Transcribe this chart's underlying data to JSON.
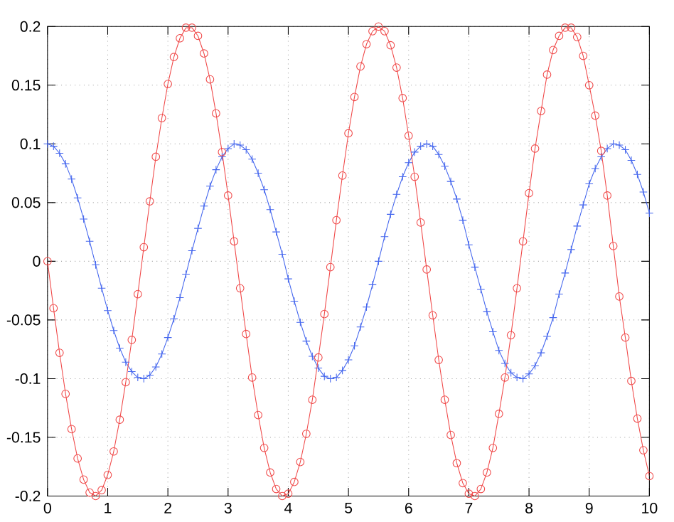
{
  "chart_data": {
    "type": "line",
    "x": [
      0,
      0.1,
      0.2,
      0.3,
      0.4,
      0.5,
      0.6,
      0.7,
      0.8,
      0.9,
      1,
      1.1,
      1.2,
      1.3,
      1.4,
      1.5,
      1.6,
      1.7,
      1.8,
      1.9,
      2,
      2.1,
      2.2,
      2.3,
      2.4,
      2.5,
      2.6,
      2.7,
      2.8,
      2.9,
      3,
      3.1,
      3.2,
      3.3,
      3.4,
      3.5,
      3.6,
      3.7,
      3.8,
      3.9,
      4,
      4.1,
      4.2,
      4.3,
      4.4,
      4.5,
      4.6,
      4.7,
      4.8,
      4.9,
      5,
      5.1,
      5.2,
      5.3,
      5.4,
      5.5,
      5.6,
      5.7,
      5.8,
      5.9,
      6,
      6.1,
      6.2,
      6.3,
      6.4,
      6.5,
      6.6,
      6.7,
      6.8,
      6.9,
      7,
      7.1,
      7.2,
      7.3,
      7.4,
      7.5,
      7.6,
      7.7,
      7.8,
      7.9,
      8,
      8.1,
      8.2,
      8.3,
      8.4,
      8.5,
      8.6,
      8.7,
      8.8,
      8.9,
      9,
      9.1,
      9.2,
      9.3,
      9.4,
      9.5,
      9.6,
      9.7,
      9.8,
      9.9,
      10
    ],
    "series": [
      {
        "color": "#4466ee",
        "marker": "cross",
        "values": [
          0.1,
          0.098,
          0.092,
          0.083,
          0.07,
          0.054,
          0.036,
          0.017,
          -0.003,
          -0.023,
          -0.042,
          -0.059,
          -0.074,
          -0.086,
          -0.094,
          -0.099,
          -0.1,
          -0.097,
          -0.09,
          -0.079,
          -0.065,
          -0.049,
          -0.031,
          -0.011,
          0.009,
          0.028,
          0.047,
          0.064,
          0.078,
          0.089,
          0.096,
          0.1,
          0.099,
          0.095,
          0.087,
          0.075,
          0.061,
          0.044,
          0.025,
          0.006,
          -0.015,
          -0.034,
          -0.052,
          -0.068,
          -0.081,
          -0.091,
          -0.098,
          -0.1,
          -0.099,
          -0.093,
          -0.084,
          -0.072,
          -0.056,
          -0.039,
          -0.02,
          0.0,
          0.021,
          0.04,
          0.057,
          0.072,
          0.084,
          0.093,
          0.098,
          0.1,
          0.098,
          0.091,
          0.081,
          0.068,
          0.053,
          0.035,
          0.014,
          -0.005,
          -0.024,
          -0.043,
          -0.06,
          -0.076,
          -0.087,
          -0.095,
          -0.099,
          -0.1,
          -0.096,
          -0.089,
          -0.078,
          -0.064,
          -0.048,
          -0.028,
          -0.01,
          0.01,
          0.03,
          0.048,
          0.066,
          0.079,
          0.089,
          0.096,
          0.1,
          0.099,
          0.095,
          0.086,
          0.074,
          0.059,
          0.041
        ]
      },
      {
        "color": "#f04848",
        "marker": "circle",
        "values": [
          0,
          -0.04,
          -0.078,
          -0.113,
          -0.143,
          -0.168,
          -0.186,
          -0.197,
          -0.2,
          -0.195,
          -0.182,
          -0.162,
          -0.135,
          -0.103,
          -0.067,
          -0.028,
          0.012,
          0.051,
          0.089,
          0.122,
          0.151,
          0.174,
          0.19,
          0.199,
          0.199,
          0.192,
          0.177,
          0.155,
          0.126,
          0.093,
          0.056,
          0.017,
          -0.023,
          -0.062,
          -0.099,
          -0.131,
          -0.159,
          -0.18,
          -0.194,
          -0.2,
          -0.198,
          -0.188,
          -0.171,
          -0.147,
          -0.118,
          -0.082,
          -0.045,
          -0.005,
          0.035,
          0.073,
          0.109,
          0.14,
          0.166,
          0.185,
          0.196,
          0.2,
          0.196,
          0.184,
          0.165,
          0.139,
          0.107,
          0.072,
          0.033,
          -0.007,
          -0.046,
          -0.084,
          -0.118,
          -0.148,
          -0.172,
          -0.189,
          -0.198,
          -0.2,
          -0.194,
          -0.18,
          -0.159,
          -0.13,
          -0.099,
          -0.063,
          -0.023,
          0.017,
          0.058,
          0.096,
          0.128,
          0.159,
          0.18,
          0.192,
          0.199,
          0.199,
          0.191,
          0.175,
          0.15,
          0.124,
          0.094,
          0.056,
          0.013,
          -0.03,
          -0.065,
          -0.102,
          -0.134,
          -0.161,
          -0.183
        ]
      }
    ],
    "xlim": [
      0,
      10
    ],
    "ylim": [
      -0.2,
      0.2
    ],
    "xticks": [
      0,
      1,
      2,
      3,
      4,
      5,
      6,
      7,
      8,
      9,
      10
    ],
    "yticks": [
      -0.2,
      -0.15,
      -0.1,
      -0.05,
      0,
      0.05,
      0.1,
      0.15,
      0.2
    ],
    "grid": true
  }
}
